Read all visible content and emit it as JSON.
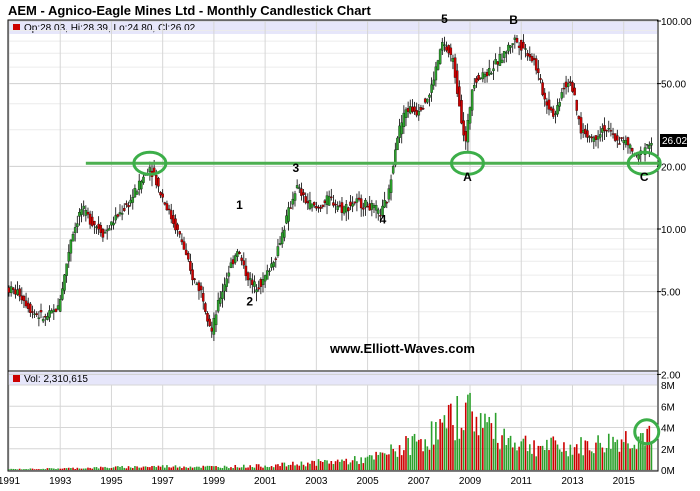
{
  "chart_data": {
    "type": "candlestick",
    "title": "AEM - Agnico-Eagle Mines Ltd - Monthly Candlestick Chart",
    "price_info": "Op:28.03, Hi:28.39, Lo:24.80, Cl:26.02",
    "volume_info": "Vol: 2,310,615",
    "last_price_label": "26.02",
    "watermark": "www.Elliott-Waves.com",
    "scale": "log",
    "price_range": [
      2.1,
      100
    ],
    "price_ticks": [
      "100.00",
      "50.00",
      "20.00",
      "10.00",
      "5.00",
      "2.00"
    ],
    "volume_range": [
      0,
      8000000
    ],
    "volume_ticks": [
      "8M",
      "6M",
      "4M",
      "2M",
      "0M"
    ],
    "x_ticks": [
      "1991",
      "1993",
      "1995",
      "1997",
      "1999",
      "2001",
      "2003",
      "2005",
      "2007",
      "2009",
      "2011",
      "2013",
      "2015"
    ],
    "x_range": [
      1991.0,
      2016.3
    ],
    "support_level": 20.7,
    "support_from": 1994.0,
    "wave_labels": [
      {
        "label": "1",
        "x": 2000.0,
        "y": 12.5
      },
      {
        "label": "2",
        "x": 2000.4,
        "y": 4.3
      },
      {
        "label": "3",
        "x": 2002.2,
        "y": 18.8
      },
      {
        "label": "4",
        "x": 2005.6,
        "y": 10.6
      },
      {
        "label": "5",
        "x": 2008.0,
        "y": 98
      },
      {
        "label": "A",
        "x": 2008.9,
        "y": 17.0
      },
      {
        "label": "B",
        "x": 2010.7,
        "y": 97
      },
      {
        "label": "C",
        "x": 2015.8,
        "y": 17.0
      }
    ],
    "highlight_circles": [
      {
        "x": 1996.5,
        "y": 20.7
      },
      {
        "x": 2008.9,
        "y": 20.7
      },
      {
        "x": 2015.8,
        "y": 20.7
      }
    ],
    "volume_highlight": {
      "x": 2015.9,
      "y": 3600000
    },
    "price_path": [
      [
        1991.0,
        5.2
      ],
      [
        1991.5,
        4.9
      ],
      [
        1992.0,
        4.0
      ],
      [
        1992.5,
        3.7
      ],
      [
        1993.0,
        4.2
      ],
      [
        1993.2,
        5.5
      ],
      [
        1993.5,
        9.0
      ],
      [
        1993.9,
        12.5
      ],
      [
        1994.3,
        11.0
      ],
      [
        1994.8,
        9.5
      ],
      [
        1995.3,
        11.5
      ],
      [
        1995.8,
        13.5
      ],
      [
        1996.3,
        17.5
      ],
      [
        1996.6,
        20.0
      ],
      [
        1997.0,
        15.0
      ],
      [
        1997.4,
        11.5
      ],
      [
        1997.8,
        9.0
      ],
      [
        1998.2,
        6.0
      ],
      [
        1998.6,
        5.0
      ],
      [
        1999.0,
        3.2
      ],
      [
        1999.3,
        4.6
      ],
      [
        1999.7,
        6.5
      ],
      [
        2000.0,
        8.0
      ],
      [
        2000.3,
        6.3
      ],
      [
        2000.6,
        5.3
      ],
      [
        2001.0,
        5.6
      ],
      [
        2001.5,
        7.5
      ],
      [
        2001.9,
        11.0
      ],
      [
        2002.3,
        16.0
      ],
      [
        2002.7,
        13.5
      ],
      [
        2003.1,
        12.5
      ],
      [
        2003.6,
        14.0
      ],
      [
        2004.1,
        12.5
      ],
      [
        2004.6,
        13.5
      ],
      [
        2005.1,
        13.0
      ],
      [
        2005.6,
        11.8
      ],
      [
        2005.9,
        14.5
      ],
      [
        2006.2,
        27.0
      ],
      [
        2006.6,
        38.0
      ],
      [
        2007.0,
        37.0
      ],
      [
        2007.5,
        44.0
      ],
      [
        2008.0,
        78.0
      ],
      [
        2008.4,
        66.0
      ],
      [
        2008.7,
        38.0
      ],
      [
        2008.9,
        25.0
      ],
      [
        2009.2,
        52.0
      ],
      [
        2009.6,
        55.0
      ],
      [
        2010.0,
        60.0
      ],
      [
        2010.5,
        72.0
      ],
      [
        2010.8,
        82.0
      ],
      [
        2011.2,
        74.0
      ],
      [
        2011.6,
        64.0
      ],
      [
        2012.0,
        42.0
      ],
      [
        2012.4,
        35.0
      ],
      [
        2012.7,
        48.0
      ],
      [
        2013.0,
        52.0
      ],
      [
        2013.4,
        30.0
      ],
      [
        2013.9,
        27.0
      ],
      [
        2014.3,
        31.0
      ],
      [
        2014.8,
        27.0
      ],
      [
        2015.2,
        26.0
      ],
      [
        2015.6,
        21.5
      ],
      [
        2015.9,
        25.0
      ],
      [
        2016.2,
        26.02
      ]
    ],
    "volume_path": [
      [
        1991.0,
        80000
      ],
      [
        1993.0,
        150000
      ],
      [
        1995.0,
        250000
      ],
      [
        1997.0,
        350000
      ],
      [
        1999.0,
        300000
      ],
      [
        2001.0,
        400000
      ],
      [
        2003.0,
        700000
      ],
      [
        2005.0,
        1000000
      ],
      [
        2006.0,
        1800000
      ],
      [
        2007.0,
        2800000
      ],
      [
        2008.0,
        4000000
      ],
      [
        2008.8,
        5800000
      ],
      [
        2009.5,
        4600000
      ],
      [
        2010.5,
        3000000
      ],
      [
        2011.5,
        2300000
      ],
      [
        2013.0,
        2100000
      ],
      [
        2014.0,
        2400000
      ],
      [
        2015.0,
        2900000
      ],
      [
        2015.9,
        3300000
      ],
      [
        2016.2,
        2310615
      ]
    ],
    "colors": {
      "up": "#2ca02c",
      "down": "#cc0000",
      "support": "#4caf50",
      "circle": "#3cae49",
      "band": "#e6e6fa"
    }
  }
}
